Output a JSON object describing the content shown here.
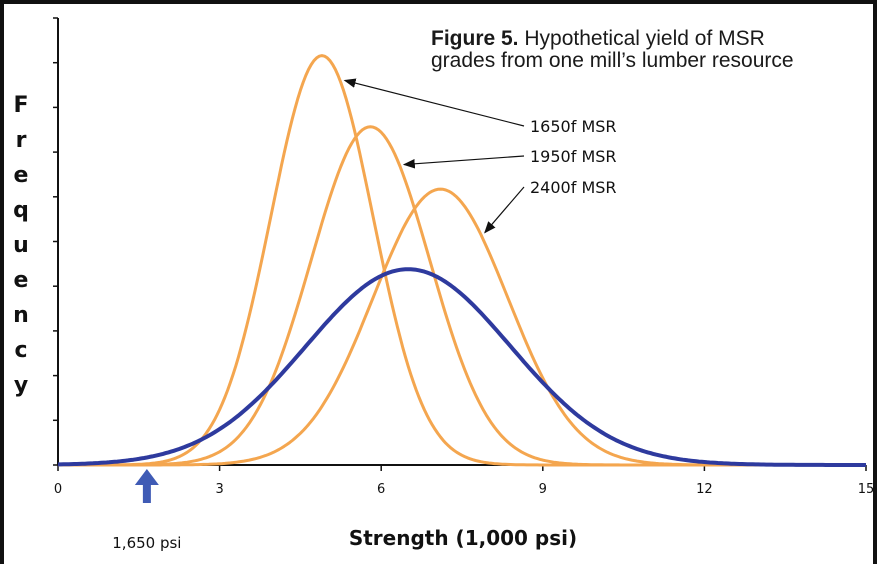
{
  "caption": {
    "figure_label": "Figure 5.",
    "text_line1": "Hypothetical yield of MSR",
    "text_line2": "grades from one mill’s lumber resource"
  },
  "chart_data": {
    "type": "line",
    "xlabel": "Strength (1,000 psi)",
    "ylabel": "Frequency",
    "xlim": [
      0,
      15
    ],
    "ylim": [
      0,
      1
    ],
    "xticks": [
      0,
      3,
      6,
      9,
      12,
      15
    ],
    "grid": false,
    "colors": {
      "grades": "#F4A64F",
      "resource": "#2E3A9E"
    },
    "series": [
      {
        "name": "1650f MSR",
        "kind": "normal",
        "mean": 4.9,
        "sd": 0.95,
        "peak": 0.92,
        "color": "#F4A64F"
      },
      {
        "name": "1950f MSR",
        "kind": "normal",
        "mean": 5.8,
        "sd": 1.1,
        "peak": 0.76,
        "color": "#F4A64F"
      },
      {
        "name": "2400f MSR",
        "kind": "normal",
        "mean": 7.1,
        "sd": 1.25,
        "peak": 0.62,
        "color": "#F4A64F"
      },
      {
        "name": "",
        "kind": "normal",
        "mean": 6.5,
        "sd": 1.9,
        "peak": 0.44,
        "color": "#2E3A9E"
      }
    ],
    "annotations": [
      {
        "text": "1,650 psi",
        "x": 1.65,
        "arrow": "up",
        "color": "#3F5BB5"
      }
    ]
  }
}
